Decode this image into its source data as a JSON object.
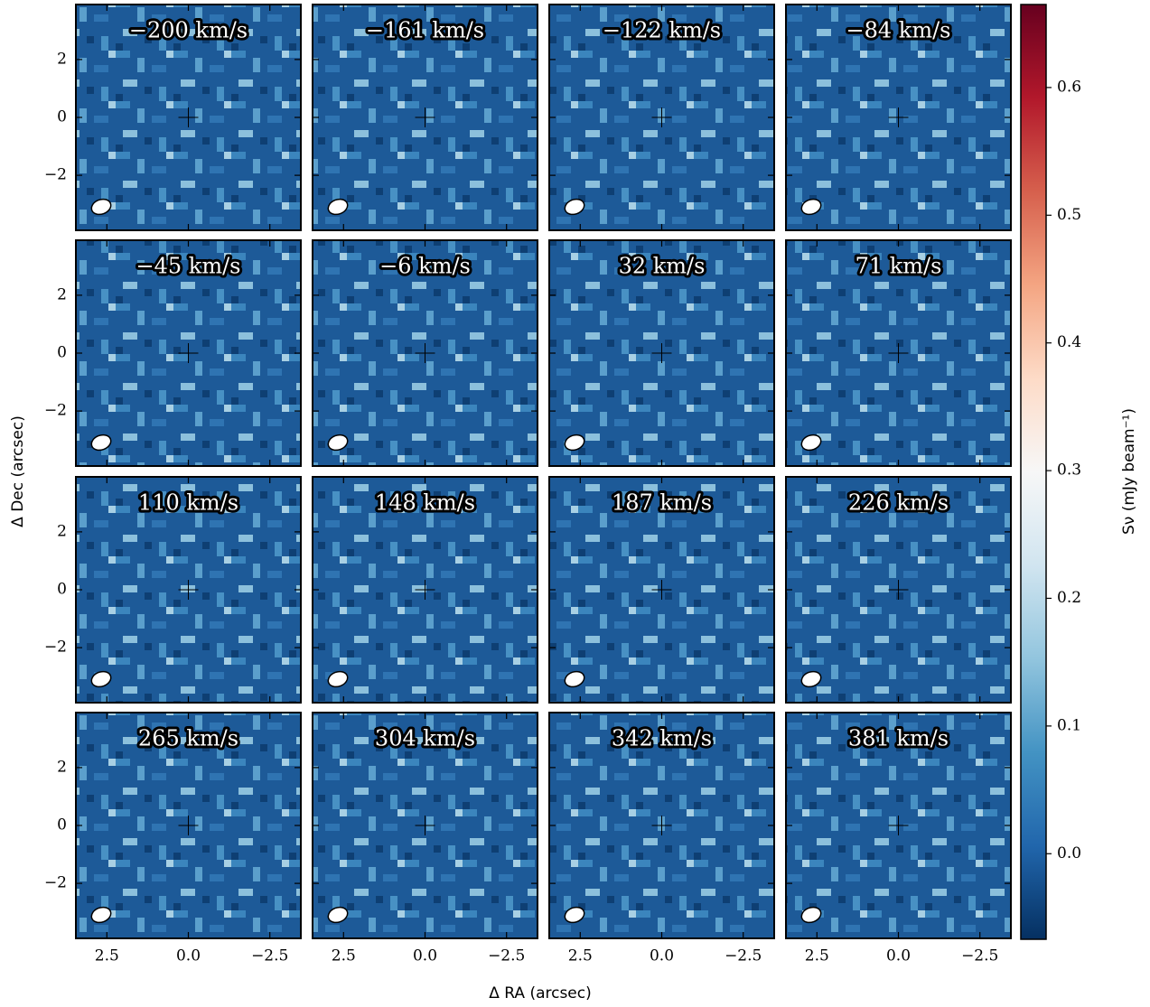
{
  "chart_data": {
    "type": "channel-map",
    "panels": [
      "−200 km/s",
      "−161 km/s",
      "−122 km/s",
      "−84 km/s",
      "−45 km/s",
      "−6 km/s",
      "32 km/s",
      "71 km/s",
      "110 km/s",
      "148 km/s",
      "187 km/s",
      "226 km/s",
      "265 km/s",
      "304 km/s",
      "342 km/s",
      "381 km/s"
    ],
    "xlabel": "Δ RA (arcsec)",
    "ylabel": "Δ Dec (arcsec)",
    "xlim": [
      3.45,
      -3.45
    ],
    "ylim": [
      -3.9,
      3.9
    ],
    "xticks": [
      2.5,
      {
        "value": 0,
        "label": "0.0"
      },
      {
        "value": -2.5,
        "label": "−2.5"
      }
    ],
    "yticks": [
      {
        "value": -2,
        "label": "−2"
      },
      0,
      2
    ],
    "colorbar": {
      "label": "Sν (mJy beam⁻¹)",
      "clim": [
        -0.067,
        0.665
      ],
      "ticks": [
        {
          "value": 0,
          "label": "0.0"
        },
        0.1,
        0.2,
        0.3,
        0.4,
        0.5,
        0.6
      ],
      "colormap": [
        "#053061",
        "#2166ac",
        "#4393c3",
        "#92c5de",
        "#d1e5f0",
        "#f7f7f7",
        "#fddbc7",
        "#f4a582",
        "#d6604d",
        "#b2182b",
        "#67001f"
      ]
    }
  }
}
